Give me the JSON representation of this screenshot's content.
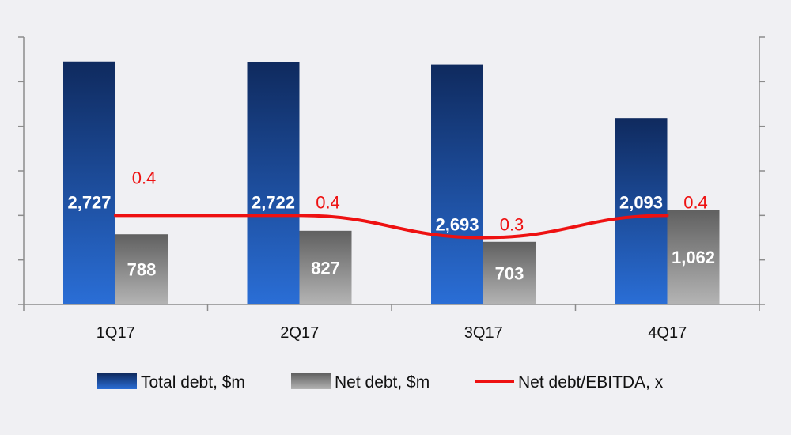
{
  "chart_data": {
    "type": "bar",
    "categories": [
      "1Q17",
      "2Q17",
      "3Q17",
      "4Q17"
    ],
    "series": [
      {
        "name": "Total debt, $m",
        "kind": "bar",
        "values": [
          2727,
          2722,
          2693,
          2093
        ],
        "labels": [
          "2,727",
          "2,722",
          "2,693",
          "2,093"
        ]
      },
      {
        "name": "Net debt, $m",
        "kind": "bar",
        "values": [
          788,
          827,
          703,
          1062
        ],
        "labels": [
          "788",
          "827",
          "703",
          "1,062"
        ]
      },
      {
        "name": "Net debt/EBITDA, x",
        "kind": "line",
        "axis": "secondary",
        "values": [
          0.4,
          0.4,
          0.3,
          0.4
        ],
        "labels": [
          "0.4",
          "0.4",
          "0.3",
          "0.4"
        ]
      }
    ],
    "ylim": [
      0,
      3000
    ],
    "y2lim": [
      0,
      1.2
    ],
    "legend_position": "bottom",
    "colors": {
      "total_debt": "#1a4a9e",
      "net_debt": "#7a7a7a",
      "line": "#ee1111",
      "background": "#f0f0f3"
    }
  }
}
